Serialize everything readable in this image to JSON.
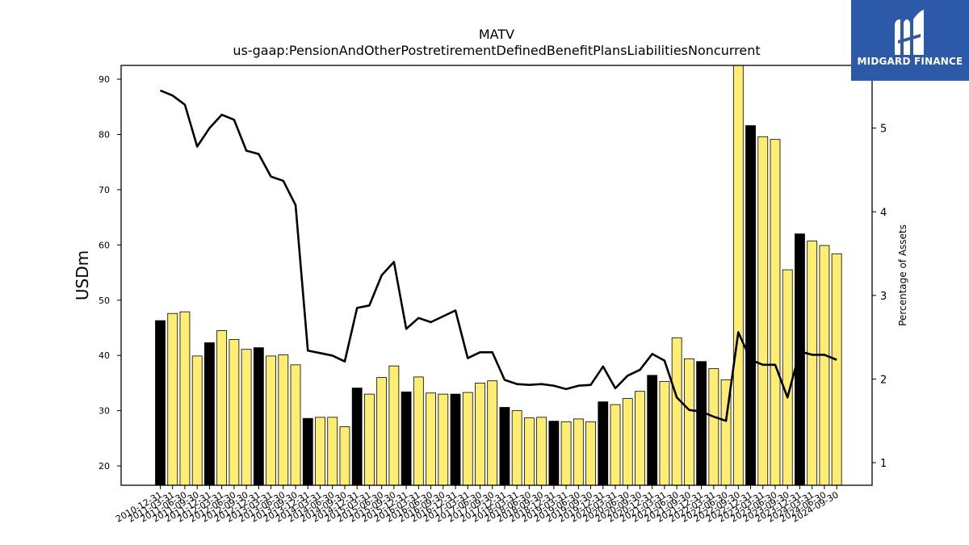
{
  "chart_data": {
    "type": "bar",
    "title": "MATV",
    "subtitle": "us-gaap:PensionAndOtherPostretirementDefinedBenefitPlansLiabilitiesNoncurrent",
    "ylabel": "USDm",
    "y2label": "Percentage of Assets",
    "ylim": [
      16.5,
      92.5
    ],
    "y2lim": [
      0.73,
      5.75
    ],
    "yticks": [
      20,
      30,
      40,
      50,
      60,
      70,
      80,
      90
    ],
    "y2ticks": [
      1,
      2,
      3,
      4,
      5
    ],
    "grid": false,
    "colors": {
      "annual_bar": "#000000",
      "quarter_bar": "#fdee73",
      "line": "#000000"
    },
    "categories": [
      "2010-12-31",
      "2011-03-31",
      "2011-06-30",
      "2011-09-30",
      "2011-12-31",
      "2012-03-31",
      "2012-06-30",
      "2012-09-30",
      "2012-12-31",
      "2013-03-31",
      "2013-06-30",
      "2013-09-30",
      "2013-12-31",
      "2014-03-31",
      "2014-06-30",
      "2014-09-30",
      "2014-12-31",
      "2015-03-31",
      "2015-06-30",
      "2015-09-30",
      "2015-12-31",
      "2016-03-31",
      "2016-06-30",
      "2016-09-30",
      "2016-12-31",
      "2017-03-31",
      "2017-06-30",
      "2017-09-30",
      "2017-12-31",
      "2018-03-31",
      "2018-06-30",
      "2018-09-30",
      "2018-12-31",
      "2019-03-31",
      "2019-06-30",
      "2019-09-30",
      "2019-12-31",
      "2020-03-31",
      "2020-06-30",
      "2020-09-30",
      "2020-12-31",
      "2021-03-31",
      "2021-06-30",
      "2021-09-30",
      "2021-12-31",
      "2022-03-31",
      "2022-06-30",
      "2022-09-30",
      "2022-12-31",
      "2023-03-31",
      "2023-06-30",
      "2023-09-30",
      "2023-12-31",
      "2024-03-31",
      "2024-06-30",
      "2024-09-30"
    ],
    "series": [
      {
        "type": "bar",
        "values": [
          46.3,
          47.6,
          47.9,
          39.9,
          42.3,
          44.5,
          42.9,
          41.1,
          41.4,
          39.9,
          40.1,
          38.3,
          28.6,
          28.8,
          28.8,
          27.1,
          34.1,
          33.0,
          36.0,
          38.1,
          33.4,
          36.1,
          33.2,
          33.0,
          33.0,
          33.3,
          35.0,
          35.4,
          30.6,
          30.0,
          28.7,
          28.8,
          28.1,
          28.0,
          28.5,
          28.0,
          31.6,
          31.1,
          32.2,
          33.5,
          36.4,
          35.3,
          43.2,
          39.4,
          38.9,
          37.6,
          35.6,
          93.0,
          81.6,
          79.6,
          79.1,
          55.5,
          62.0,
          60.7,
          59.9,
          58.4
        ],
        "annual": [
          true,
          false,
          false,
          false,
          true,
          false,
          false,
          false,
          true,
          false,
          false,
          false,
          true,
          false,
          false,
          false,
          true,
          false,
          false,
          false,
          true,
          false,
          false,
          false,
          true,
          false,
          false,
          false,
          true,
          false,
          false,
          false,
          true,
          false,
          false,
          false,
          true,
          false,
          false,
          false,
          true,
          false,
          false,
          false,
          true,
          false,
          false,
          false,
          true,
          false,
          false,
          false,
          true,
          false,
          false,
          false
        ]
      },
      {
        "type": "line",
        "axis": "right",
        "values": [
          5.45,
          5.39,
          5.28,
          4.78,
          5.0,
          5.16,
          5.1,
          4.73,
          4.69,
          4.42,
          4.37,
          4.08,
          2.34,
          2.31,
          2.28,
          2.21,
          2.85,
          2.88,
          3.24,
          3.4,
          2.6,
          2.73,
          2.68,
          2.75,
          2.82,
          2.25,
          2.32,
          2.32,
          1.99,
          1.94,
          1.93,
          1.94,
          1.92,
          1.88,
          1.92,
          1.93,
          2.15,
          1.89,
          2.04,
          2.11,
          2.3,
          2.22,
          1.78,
          1.63,
          1.61,
          1.55,
          1.5,
          2.56,
          2.23,
          2.17,
          2.17,
          1.78,
          2.33,
          2.29,
          2.29,
          2.23
        ]
      }
    ]
  },
  "logo": {
    "brand": "MIDGARD FINANCE",
    "icon": "midgard-logo-icon"
  }
}
